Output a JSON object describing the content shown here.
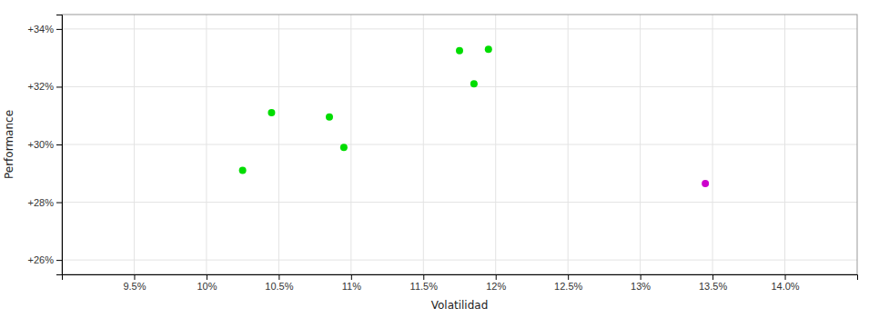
{
  "chart_data": {
    "type": "scatter",
    "xlabel": "Volatilidad",
    "ylabel": "Performance",
    "xlim": [
      0.09,
      0.145
    ],
    "ylim": [
      0.255,
      0.345
    ],
    "xticks": [
      {
        "value": 0.095,
        "label": "9.5%"
      },
      {
        "value": 0.1,
        "label": "10%"
      },
      {
        "value": 0.105,
        "label": "10.5%"
      },
      {
        "value": 0.11,
        "label": "11%"
      },
      {
        "value": 0.115,
        "label": "11.5%"
      },
      {
        "value": 0.12,
        "label": "12%"
      },
      {
        "value": 0.125,
        "label": "12.5%"
      },
      {
        "value": 0.13,
        "label": "13%"
      },
      {
        "value": 0.135,
        "label": "13.5%"
      },
      {
        "value": 0.14,
        "label": "14.0%"
      }
    ],
    "yticks": [
      {
        "value": 0.26,
        "label": "+26%"
      },
      {
        "value": 0.28,
        "label": "+28%"
      },
      {
        "value": 0.3,
        "label": "+30%"
      },
      {
        "value": 0.32,
        "label": "+32%"
      },
      {
        "value": 0.34,
        "label": "+34%"
      }
    ],
    "grid": true,
    "series": [
      {
        "color": "#00dd00",
        "x": [
          0.1025,
          0.1045,
          0.1085,
          0.1095,
          0.1175,
          0.1195,
          0.1185
        ],
        "values": [
          0.291,
          0.311,
          0.3095,
          0.299,
          0.3325,
          0.333,
          0.321
        ]
      },
      {
        "color": "#cc00cc",
        "x": [
          0.1345
        ],
        "values": [
          0.2865
        ]
      }
    ]
  }
}
